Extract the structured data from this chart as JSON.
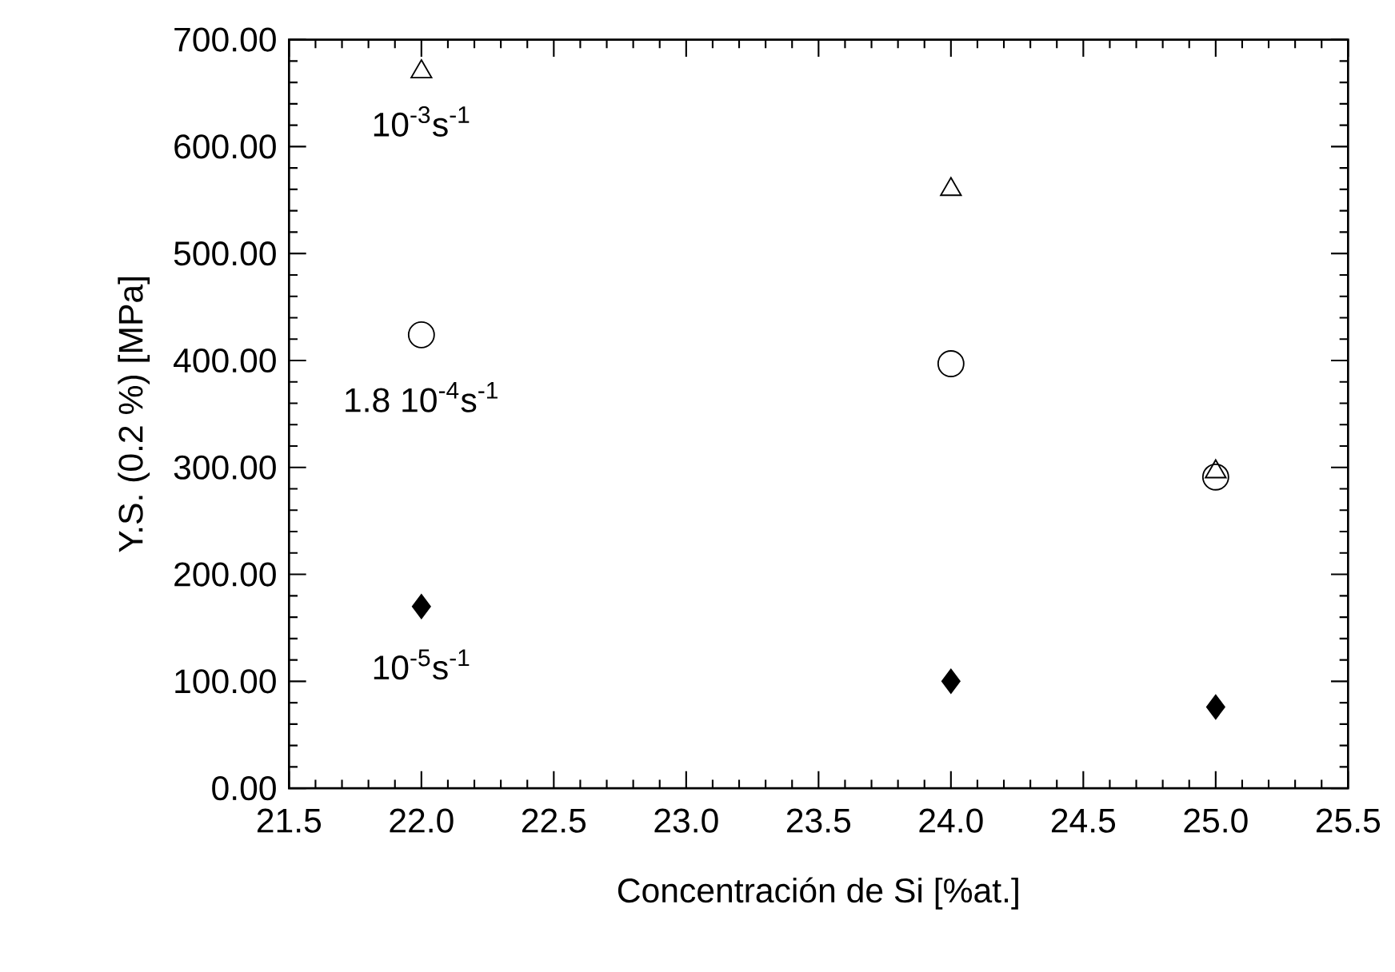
{
  "chart_data": {
    "type": "scatter",
    "xlabel": "Concentración de Si [%at.]",
    "ylabel": "Y.S. (0.2 %) [MPa]",
    "x": [
      22.0,
      24.0,
      25.0
    ],
    "series": [
      {
        "name": "10$^{-3}$s$^{-1}$",
        "color": "#000000",
        "marker": "triangle",
        "values": [
          670,
          560,
          296
        ]
      },
      {
        "name": "1.8 10$^{-4}$s$^{-1}$",
        "color": "#000000",
        "marker": "circle",
        "values": [
          424,
          397,
          291
        ]
      },
      {
        "name": "10$^{-5}$s$^{-1}$",
        "color": "#000000",
        "marker": "diamond",
        "values": [
          170,
          100,
          76
        ]
      }
    ],
    "xlim": [
      21.5,
      25.5
    ],
    "xticks": [
      21.5,
      {
        "value": 22.0,
        "label": "22.0"
      },
      22.5,
      {
        "value": 23.0,
        "label": "23.0"
      },
      23.5,
      {
        "value": 24.0,
        "label": "24.0"
      },
      24.5,
      {
        "value": 25.0,
        "label": "25.0"
      },
      25.5
    ],
    "ylim": [
      0,
      700
    ],
    "yticks": [
      {
        "value": 0,
        "label": "0.00"
      },
      {
        "value": 100,
        "label": "100.00"
      },
      {
        "value": 200,
        "label": "200.00"
      },
      {
        "value": 300,
        "label": "300.00"
      },
      {
        "value": 400,
        "label": "400.00"
      },
      {
        "value": 500,
        "label": "500.00"
      },
      {
        "value": 600,
        "label": "600.00"
      },
      {
        "value": 700,
        "label": "700.00"
      }
    ],
    "grid": false,
    "legend": "left"
  }
}
